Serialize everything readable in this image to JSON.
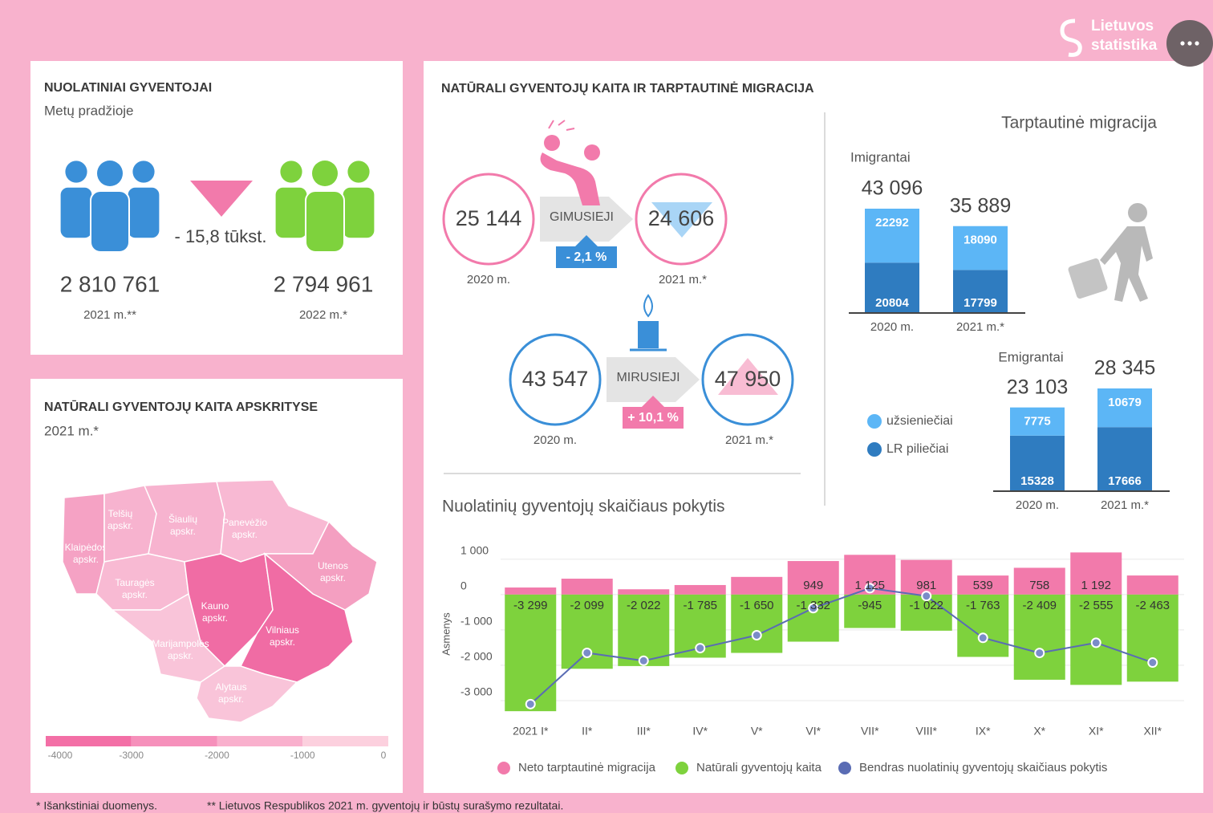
{
  "header": {
    "logo": [
      "Lietuvos",
      "statistika"
    ]
  },
  "population": {
    "title": "NUOLATINIAI GYVENTOJAI",
    "subtitle": "Metų pradžioje",
    "change": "- 15,8 tūkst.",
    "items": [
      {
        "value": "2 810 761",
        "year": "2021 m.**"
      },
      {
        "value": "2 794 961",
        "year": "2022 m.*"
      }
    ]
  },
  "vital": {
    "title": "NATŪRALI GYVENTOJŲ KAITA IR TARPTAUTINĖ MIGRACIJA",
    "births": {
      "label": "GIMUSIEJI",
      "before": "25 144",
      "before_year": "2020 m.",
      "after": "24 606",
      "after_year": "2021 m.*",
      "change": "- 2,1 %"
    },
    "deaths": {
      "label": "MIRUSIEJI",
      "before": "43 547",
      "before_year": "2020 m.",
      "after": "47 950",
      "after_year": "2021 m.*",
      "change": "+ 10,1 %"
    }
  },
  "chart_data": [
    {
      "type": "stacked-bar",
      "title": "Tarptautinė migracija",
      "series": [
        {
          "name": "užsieniečiai",
          "color": "#5cb6f6"
        },
        {
          "name": "LR piliečiai",
          "color": "#2f7cc0"
        }
      ],
      "groups": [
        {
          "title": "Imigrantai",
          "categories": [
            "2020 m.",
            "2021 m.*"
          ],
          "values": [
            [
              22292,
              18090
            ],
            [
              20804,
              17799
            ]
          ],
          "totals": [
            43096,
            35889
          ],
          "total_labels": [
            "43 096",
            "35 889"
          ]
        },
        {
          "title": "Emigrantai",
          "categories": [
            "2020 m.",
            "2021 m.*"
          ],
          "values": [
            [
              7775,
              10679
            ],
            [
              15328,
              17666
            ]
          ],
          "totals": [
            23103,
            28345
          ],
          "total_labels": [
            "23 103",
            "28 345"
          ]
        }
      ]
    },
    {
      "type": "combo",
      "title": "Nuolatinių gyventojų skaičiaus pokytis",
      "ylabel": "Asmenys",
      "categories": [
        "2021 I*",
        "II*",
        "III*",
        "IV*",
        "V*",
        "VI*",
        "VII*",
        "VIII*",
        "IX*",
        "X*",
        "XI*",
        "XII*"
      ],
      "ylim": [
        -3500,
        1200
      ],
      "yticks": [
        {
          "value": -3000,
          "label": "-3 000"
        },
        {
          "value": -2000,
          "label": "-2 000"
        },
        {
          "value": -1000,
          "label": "-1 000"
        },
        0,
        {
          "value": 1000,
          "label": "1 000"
        }
      ],
      "grid": true,
      "series": [
        {
          "name": "Neto tarptautinė migracija",
          "type": "bar",
          "color": "#f27aab",
          "values": [
            200,
            450,
            150,
            270,
            500,
            949,
            1125,
            981,
            539,
            758,
            1192,
            540
          ],
          "value_labels": [
            null,
            null,
            null,
            null,
            null,
            "949",
            "1 125",
            "981",
            "539",
            "758",
            "1 192",
            null
          ]
        },
        {
          "name": "Natūrali gyventojų kaita",
          "type": "bar",
          "color": "#7ed23d",
          "values": [
            -3299,
            -2099,
            -2022,
            -1785,
            -1650,
            -1332,
            -945,
            -1022,
            -1763,
            -2409,
            -2555,
            -2463
          ],
          "value_labels": [
            "-3 299",
            "-2 099",
            "-2 022",
            "-1 785",
            "-1 650",
            "-1 332",
            "-945",
            "-1 022",
            "-1 763",
            "-2 409",
            "-2 555",
            "-2 463"
          ]
        },
        {
          "name": "Bendras nuolatinių gyventojų skaičiaus pokytis",
          "type": "line",
          "color": "#5a6cb4",
          "values": [
            -3099,
            -1649,
            -1872,
            -1515,
            -1150,
            -383,
            180,
            -41,
            -1224,
            -1651,
            -1363,
            -1923
          ]
        }
      ]
    },
    {
      "type": "map",
      "title": "NATŪRALI GYVENTOJŲ KAITA APSKRITYSE",
      "subtitle": "2021 m.*",
      "regions": [
        {
          "name": [
            "Klaipėdos",
            "apskr."
          ],
          "color": "#f5a2c4"
        },
        {
          "name": [
            "Telšių",
            "apskr."
          ],
          "color": "#f7b3cf"
        },
        {
          "name": [
            "Šiaulių",
            "apskr."
          ],
          "color": "#f7b3cf"
        },
        {
          "name": [
            "Panevėžio",
            "apskr."
          ],
          "color": "#f8b9d3"
        },
        {
          "name": [
            "Utenos",
            "apskr."
          ],
          "color": "#f49fc1"
        },
        {
          "name": [
            "Tauragės",
            "apskr."
          ],
          "color": "#f8bad3"
        },
        {
          "name": [
            "Kauno",
            "apskr."
          ],
          "color": "#f06ca4"
        },
        {
          "name": [
            "Vilniaus",
            "apskr."
          ],
          "color": "#f06ca4"
        },
        {
          "name": [
            "Marijampolės",
            "apskr."
          ],
          "color": "#f9c4d9"
        },
        {
          "name": [
            "Alytaus",
            "apskr."
          ],
          "color": "#f9c4d9"
        }
      ],
      "colorbar": {
        "lim": [
          -4000,
          0
        ],
        "ticks": [
          -4000,
          -3000,
          -2000,
          -1000,
          0
        ],
        "colors": [
          "#f36fa6",
          "#f690bb",
          "#f9b0cd",
          "#fcd0de"
        ]
      }
    }
  ],
  "footnotes": [
    "* Išankstiniai duomenys.",
    "** Lietuvos Respublikos 2021 m. gyventojų ir būstų surašymo rezultatai."
  ]
}
